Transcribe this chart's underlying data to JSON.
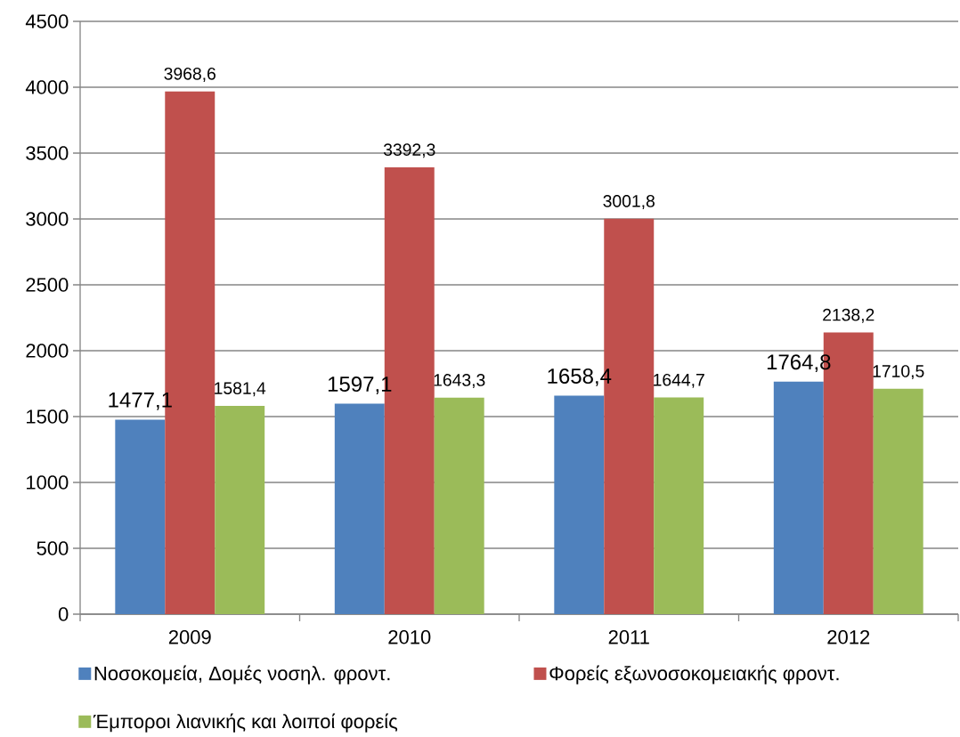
{
  "chart_data": {
    "type": "bar",
    "categories": [
      "2009",
      "2010",
      "2011",
      "2012"
    ],
    "series": [
      {
        "name": "Νοσοκομεία, Δομές νοσηλ. φροντ.",
        "color": "#4f81bd",
        "values": [
          1477.1,
          1597.1,
          1658.4,
          1764.8
        ],
        "value_labels": [
          "1477,1",
          "1597,1",
          "1658,4",
          "1764,8"
        ]
      },
      {
        "name": "Φορείς εξωνοσοκομειακής φροντ.",
        "color": "#c0504d",
        "values": [
          3968.6,
          3392.3,
          3001.8,
          2138.2
        ],
        "value_labels": [
          "3968,6",
          "3392,3",
          "3001,8",
          "2138,2"
        ]
      },
      {
        "name": "Έμποροι λιανικής και λοιποί φορείς",
        "color": "#9bbb59",
        "values": [
          1581.4,
          1643.3,
          1644.7,
          1710.5
        ],
        "value_labels": [
          "1581,4",
          "1643,3",
          "1644,7",
          "1710,5"
        ]
      }
    ],
    "ylim": [
      0,
      4500
    ],
    "yticks": [
      0,
      500,
      1000,
      1500,
      2000,
      2500,
      3000,
      3500,
      4000,
      4500
    ],
    "grid": "y",
    "legend": "bottom"
  }
}
